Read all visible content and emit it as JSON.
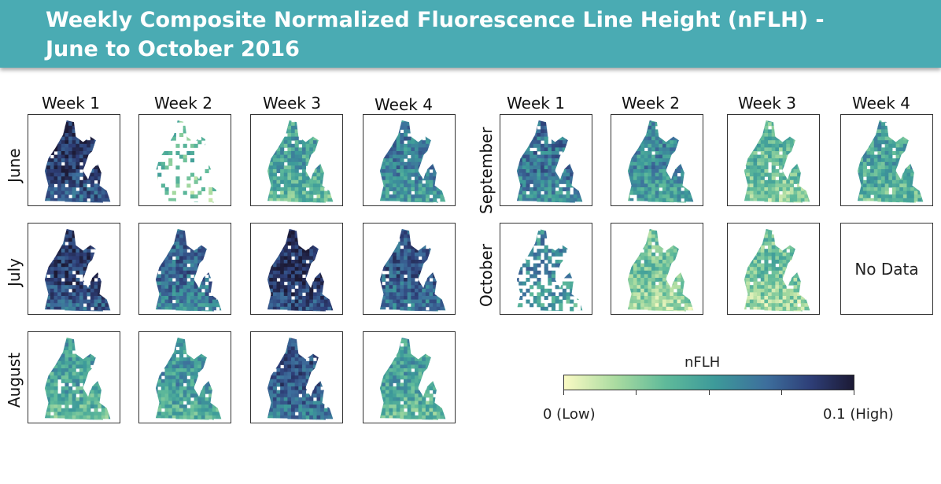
{
  "title": "Weekly Composite Normalized Fluorescence Line Height (nFLH) - June to October 2016",
  "title_line1": "Weekly Composite Normalized Fluorescence Line Height (nFLH) -",
  "title_line2": "June to October 2016",
  "left_block": {
    "weeks": [
      "Week 1",
      "Week 2",
      "Week 3",
      "Week 4"
    ],
    "months": [
      "June",
      "July",
      "August"
    ]
  },
  "right_block": {
    "weeks": [
      "Week 1",
      "Week 2",
      "Week 3",
      "Week 4"
    ],
    "months": [
      "September",
      "October"
    ]
  },
  "no_data_label": "No Data",
  "colorbar": {
    "label": "nFLH",
    "min_label": "0 (Low)",
    "max_label": "0.1 (High)",
    "range": [
      0,
      0.1
    ],
    "colors": [
      "#fafac4",
      "#a9dba0",
      "#5fba9a",
      "#3d9a9a",
      "#3d6e9c",
      "#2e3f78",
      "#1c1a35"
    ]
  },
  "map_panels": [
    {
      "month": "June",
      "week": 1,
      "level": 0.85,
      "has_data": true,
      "coverage": "full"
    },
    {
      "month": "June",
      "week": 2,
      "level": 0.35,
      "has_data": true,
      "coverage": "sparse"
    },
    {
      "month": "June",
      "week": 3,
      "level": 0.45,
      "has_data": true,
      "coverage": "full"
    },
    {
      "month": "June",
      "week": 4,
      "level": 0.6,
      "has_data": true,
      "coverage": "full"
    },
    {
      "month": "July",
      "week": 1,
      "level": 0.85,
      "has_data": true,
      "coverage": "full"
    },
    {
      "month": "July",
      "week": 2,
      "level": 0.7,
      "has_data": true,
      "coverage": "full"
    },
    {
      "month": "July",
      "week": 3,
      "level": 0.9,
      "has_data": true,
      "coverage": "full"
    },
    {
      "month": "July",
      "week": 4,
      "level": 0.75,
      "has_data": true,
      "coverage": "full"
    },
    {
      "month": "August",
      "week": 1,
      "level": 0.45,
      "has_data": true,
      "coverage": "full"
    },
    {
      "month": "August",
      "week": 2,
      "level": 0.5,
      "has_data": true,
      "coverage": "full"
    },
    {
      "month": "August",
      "week": 3,
      "level": 0.75,
      "has_data": true,
      "coverage": "full"
    },
    {
      "month": "August",
      "week": 4,
      "level": 0.45,
      "has_data": true,
      "coverage": "full"
    },
    {
      "month": "September",
      "week": 1,
      "level": 0.65,
      "has_data": true,
      "coverage": "full"
    },
    {
      "month": "September",
      "week": 2,
      "level": 0.55,
      "has_data": true,
      "coverage": "full"
    },
    {
      "month": "September",
      "week": 3,
      "level": 0.35,
      "has_data": true,
      "coverage": "full"
    },
    {
      "month": "September",
      "week": 4,
      "level": 0.45,
      "has_data": true,
      "coverage": "full"
    },
    {
      "month": "October",
      "week": 1,
      "level": 0.55,
      "has_data": true,
      "coverage": "partial"
    },
    {
      "month": "October",
      "week": 2,
      "level": 0.3,
      "has_data": true,
      "coverage": "full"
    },
    {
      "month": "October",
      "week": 3,
      "level": 0.3,
      "has_data": true,
      "coverage": "full"
    },
    {
      "month": "October",
      "week": 4,
      "level": 0,
      "has_data": false,
      "coverage": "none"
    }
  ]
}
